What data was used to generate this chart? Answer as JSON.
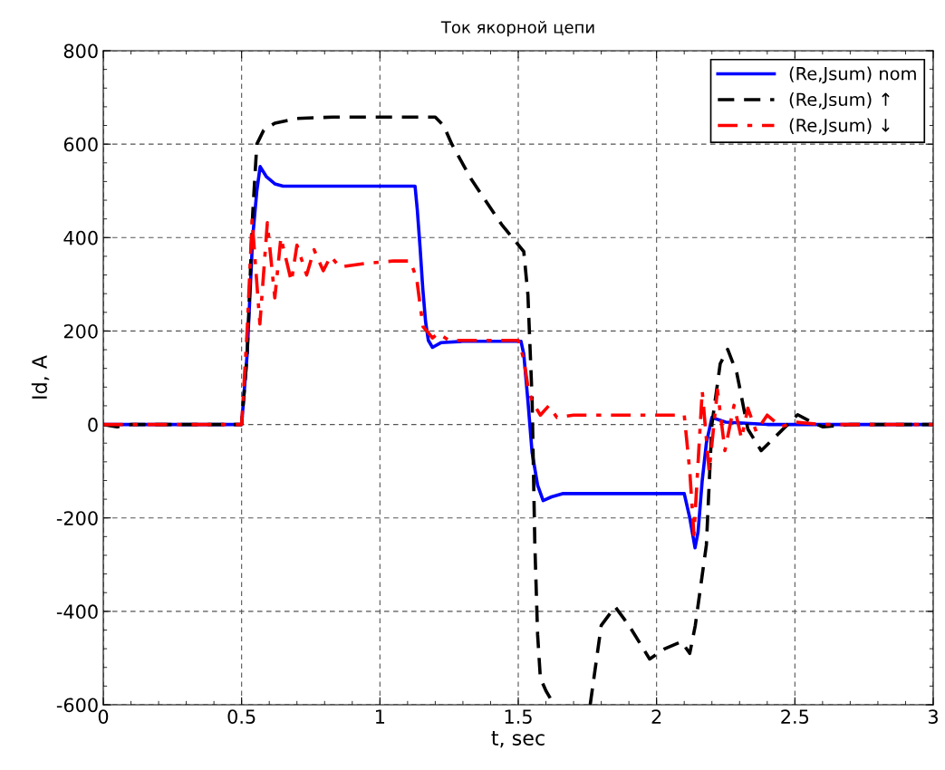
{
  "chart_data": {
    "type": "line",
    "title": "Ток якорной цепи",
    "xlabel": "t, sec",
    "ylabel": "Id, A",
    "xlim": [
      0,
      3
    ],
    "xticks": [
      0,
      0.5,
      1,
      1.5,
      2,
      2.5,
      3
    ],
    "ylim": [
      -600,
      800
    ],
    "yticks": [
      -600,
      -400,
      -200,
      0,
      200,
      400,
      600,
      800
    ],
    "grid": true,
    "legend": "top right",
    "series": [
      {
        "name": "(Re,Jsum) nom",
        "color": "#0000ff",
        "line_style": "solid",
        "x": [
          0,
          0.3,
          0.5,
          0.52,
          0.54,
          0.555,
          0.567,
          0.59,
          0.62,
          0.65,
          0.8,
          1.0,
          1.127,
          1.135,
          1.145,
          1.155,
          1.165,
          1.175,
          1.19,
          1.22,
          1.3,
          1.4,
          1.51,
          1.52,
          1.535,
          1.55,
          1.57,
          1.59,
          1.62,
          1.66,
          1.8,
          2.0,
          2.1,
          2.12,
          2.139,
          2.15,
          2.165,
          2.18,
          2.2,
          2.25,
          2.4,
          2.6,
          3.0
        ],
        "values": [
          0,
          0,
          0,
          150,
          400,
          500,
          552,
          530,
          515,
          510,
          510,
          510,
          510,
          460,
          380,
          290,
          220,
          180,
          165,
          175,
          178,
          178,
          178,
          150,
          50,
          -60,
          -130,
          -163,
          -155,
          -148,
          -148,
          -148,
          -148,
          -200,
          -264,
          -230,
          -120,
          -40,
          15,
          5,
          0,
          0,
          0
        ]
      },
      {
        "name": "(Re,Jsum) ↑",
        "color": "#000000",
        "line_style": "dashed",
        "x": [
          0,
          0.05,
          0.1,
          0.3,
          0.5,
          0.52,
          0.54,
          0.555,
          0.58,
          0.62,
          0.7,
          0.83,
          1.0,
          1.2,
          1.23,
          1.26,
          1.33,
          1.44,
          1.52,
          1.535,
          1.55,
          1.56,
          1.57,
          1.58,
          1.6,
          1.63,
          1.7,
          1.76,
          1.8,
          1.85,
          1.9,
          1.975,
          2.03,
          2.09,
          2.12,
          2.14,
          2.18,
          2.2,
          2.23,
          2.257,
          2.29,
          2.33,
          2.378,
          2.44,
          2.51,
          2.56,
          2.6,
          2.7,
          3.0
        ],
        "values": [
          0,
          -5,
          0,
          0,
          0,
          150,
          450,
          600,
          630,
          645,
          655,
          658,
          658,
          658,
          640,
          600,
          525,
          428,
          370,
          277,
          55,
          -258,
          -450,
          -543,
          -570,
          -600,
          null,
          -600,
          -430,
          -390,
          -430,
          -502,
          -480,
          -465,
          -490,
          -430,
          -258,
          0,
          130,
          161,
          110,
          -10,
          -56,
          -20,
          21,
          5,
          -5,
          0,
          0
        ]
      },
      {
        "name": "(Re,Jsum) ↓",
        "color": "#ff0000",
        "line_style": "dashdot",
        "x": [
          0,
          0.3,
          0.5,
          0.52,
          0.538,
          0.566,
          0.593,
          0.62,
          0.642,
          0.68,
          0.7,
          0.735,
          0.762,
          0.795,
          0.822,
          0.855,
          0.95,
          1.05,
          1.11,
          1.133,
          1.144,
          1.156,
          1.17,
          1.19,
          1.21,
          1.25,
          1.35,
          1.5,
          1.52,
          1.535,
          1.55,
          1.58,
          1.61,
          1.64,
          1.7,
          1.9,
          2.1,
          2.12,
          2.135,
          2.165,
          2.19,
          2.22,
          2.247,
          2.28,
          2.307,
          2.33,
          2.36,
          2.4,
          2.45,
          2.5,
          2.6,
          2.7,
          3.0
        ],
        "values": [
          0,
          0,
          0,
          200,
          438,
          215,
          432,
          271,
          400,
          306,
          384,
          320,
          374,
          329,
          360,
          337,
          345,
          350,
          350,
          312,
          261,
          209,
          200,
          185,
          195,
          180,
          180,
          180,
          140,
          80,
          50,
          20,
          40,
          15,
          20,
          20,
          20,
          -100,
          -236,
          72,
          -100,
          74,
          -56,
          41,
          -30,
          35,
          -15,
          20,
          -5,
          5,
          0,
          0,
          0
        ]
      }
    ]
  }
}
